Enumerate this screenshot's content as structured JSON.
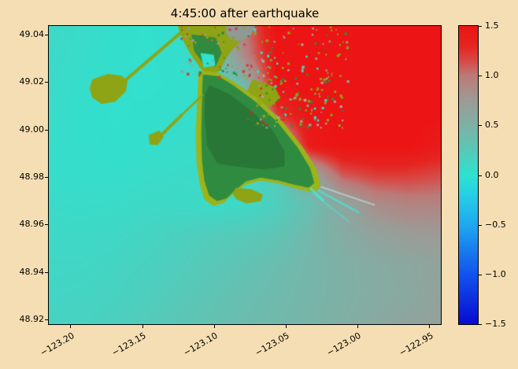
{
  "page": {
    "background_color": "#f5deb3"
  },
  "chart_data": {
    "type": "heatmap",
    "title": "4:45:00 after earthquake",
    "subtitle": "",
    "xlabel": "",
    "ylabel": "",
    "xlim": [
      -123.215,
      -122.942
    ],
    "ylim": [
      48.918,
      49.0436
    ],
    "grid": false,
    "xticks": {
      "values": [
        -123.2,
        -123.15,
        -123.1,
        -123.05,
        -123.0,
        -122.95
      ],
      "labels": [
        "−123.20",
        "−123.15",
        "−123.10",
        "−123.05",
        "−123.00",
        "−122.95"
      ]
    },
    "yticks": {
      "values": [
        49.04,
        49.02,
        49.0,
        48.98,
        48.96,
        48.94,
        48.92
      ],
      "labels": [
        "49.04",
        "49.02",
        "49.00",
        "48.98",
        "48.96",
        "48.94",
        "48.92"
      ]
    },
    "colorbar": {
      "min": -1.5,
      "max": 1.5,
      "position": "right",
      "ticks": {
        "values": [
          1.5,
          1.0,
          0.5,
          0.0,
          -0.5,
          -1.0,
          -1.5
        ],
        "labels": [
          "1.5",
          "1.0",
          "0.5",
          "0.0",
          "−0.5",
          "−1.0",
          "−1.5"
        ]
      },
      "stops": [
        {
          "v": -1.5,
          "c": "#0a0ad2"
        },
        {
          "v": -1.0,
          "c": "#1253ee"
        },
        {
          "v": -0.5,
          "c": "#1fa8f0"
        },
        {
          "v": -0.2,
          "c": "#27cfe6"
        },
        {
          "v": 0.0,
          "c": "#2ee2cf"
        },
        {
          "v": 0.3,
          "c": "#5fc4b4"
        },
        {
          "v": 0.5,
          "c": "#7fb0a5"
        },
        {
          "v": 0.75,
          "c": "#9d9a96"
        },
        {
          "v": 1.0,
          "c": "#bb7a78"
        },
        {
          "v": 1.15,
          "c": "#d84a46"
        },
        {
          "v": 1.3,
          "c": "#e62420"
        },
        {
          "v": 1.5,
          "c": "#ec1414"
        }
      ]
    },
    "field": {
      "description": "sea surface displacement (m), coarse grid, row 0 = north/top, saturates at ±1.5",
      "cols": 13,
      "rows": 11,
      "values": [
        [
          0.1,
          0.07,
          0.04,
          0.02,
          0.05,
          0.3,
          1.0,
          1.5,
          1.5,
          1.5,
          1.5,
          1.5,
          1.5
        ],
        [
          0.09,
          0.06,
          0.03,
          0.02,
          0.04,
          0.2,
          0.9,
          1.5,
          1.5,
          1.5,
          1.5,
          1.5,
          1.5
        ],
        [
          0.08,
          0.05,
          0.03,
          0.02,
          0.03,
          0.05,
          0.4,
          1.5,
          1.5,
          1.5,
          1.5,
          1.5,
          1.5
        ],
        [
          0.07,
          0.04,
          0.02,
          0.03,
          0.04,
          0.06,
          0.3,
          1.2,
          1.5,
          1.5,
          1.5,
          1.5,
          1.5
        ],
        [
          0.06,
          0.04,
          0.03,
          0.04,
          0.06,
          0.08,
          0.15,
          0.5,
          1.4,
          1.5,
          1.5,
          1.5,
          1.4
        ],
        [
          0.06,
          0.05,
          0.05,
          0.07,
          0.08,
          0.08,
          0.1,
          0.25,
          0.6,
          1.1,
          1.2,
          1.2,
          1.15
        ],
        [
          0.08,
          0.07,
          0.08,
          0.1,
          0.1,
          0.08,
          0.1,
          0.2,
          0.35,
          0.6,
          0.85,
          0.92,
          0.92
        ],
        [
          0.1,
          0.1,
          0.11,
          0.14,
          0.18,
          0.22,
          0.25,
          0.3,
          0.42,
          0.55,
          0.65,
          0.72,
          0.75
        ],
        [
          0.12,
          0.12,
          0.14,
          0.17,
          0.21,
          0.26,
          0.31,
          0.37,
          0.44,
          0.5,
          0.56,
          0.6,
          0.65
        ],
        [
          0.13,
          0.14,
          0.16,
          0.2,
          0.25,
          0.3,
          0.35,
          0.4,
          0.45,
          0.5,
          0.55,
          0.58,
          0.66
        ],
        [
          0.15,
          0.16,
          0.19,
          0.23,
          0.28,
          0.33,
          0.38,
          0.42,
          0.46,
          0.52,
          0.58,
          0.63,
          0.68
        ]
      ]
    },
    "land_colors": {
      "olive": "#8fa414",
      "fringe": "#9db31a",
      "green": "#2f8b3f",
      "dark_green": "#297737",
      "urban_gray": "#8f9a96",
      "water_cyan": "#2ee2cf"
    },
    "land_shapes": [
      {
        "name": "delta-upland",
        "color": "#8fa414",
        "points": [
          [
            0.33,
            0.0
          ],
          [
            0.525,
            0.0
          ],
          [
            0.505,
            0.035
          ],
          [
            0.478,
            0.065
          ],
          [
            0.46,
            0.09
          ],
          [
            0.448,
            0.118
          ],
          [
            0.436,
            0.148
          ],
          [
            0.418,
            0.163
          ],
          [
            0.4,
            0.16
          ],
          [
            0.386,
            0.138
          ],
          [
            0.368,
            0.105
          ],
          [
            0.35,
            0.065
          ],
          [
            0.337,
            0.03
          ]
        ]
      },
      {
        "name": "delta-urban-gray",
        "color": "#8f9a96",
        "points": [
          [
            0.455,
            0.0
          ],
          [
            0.525,
            0.0
          ],
          [
            0.515,
            0.03
          ],
          [
            0.49,
            0.05
          ],
          [
            0.465,
            0.045
          ],
          [
            0.452,
            0.02
          ]
        ]
      },
      {
        "name": "delta-green-patch",
        "color": "#2f8b3f",
        "points": [
          [
            0.365,
            0.03
          ],
          [
            0.425,
            0.04
          ],
          [
            0.44,
            0.09
          ],
          [
            0.425,
            0.135
          ],
          [
            0.395,
            0.125
          ],
          [
            0.372,
            0.085
          ]
        ]
      },
      {
        "name": "harbor-notch",
        "color": "#2ee2cf",
        "points": [
          [
            0.388,
            0.092
          ],
          [
            0.42,
            0.098
          ],
          [
            0.424,
            0.132
          ],
          [
            0.396,
            0.138
          ]
        ]
      },
      {
        "name": "ferry-terminal",
        "color": "#8fa414",
        "points": [
          [
            0.112,
            0.18
          ],
          [
            0.15,
            0.162
          ],
          [
            0.185,
            0.168
          ],
          [
            0.2,
            0.185
          ],
          [
            0.195,
            0.22
          ],
          [
            0.17,
            0.252
          ],
          [
            0.135,
            0.26
          ],
          [
            0.112,
            0.24
          ],
          [
            0.105,
            0.21
          ]
        ]
      },
      {
        "name": "coal-port",
        "color": "#8fa414",
        "points": [
          [
            0.256,
            0.366
          ],
          [
            0.282,
            0.352
          ],
          [
            0.292,
            0.372
          ],
          [
            0.278,
            0.398
          ],
          [
            0.258,
            0.396
          ]
        ]
      },
      {
        "name": "marsh-east",
        "color": "#8fa414",
        "points": [
          [
            0.52,
            0.18
          ],
          [
            0.575,
            0.205
          ],
          [
            0.59,
            0.24
          ],
          [
            0.565,
            0.27
          ],
          [
            0.53,
            0.26
          ],
          [
            0.505,
            0.225
          ]
        ]
      },
      {
        "name": "peninsula-fringe",
        "color": "#9db31a",
        "points": [
          [
            0.383,
            0.15
          ],
          [
            0.432,
            0.158
          ],
          [
            0.472,
            0.188
          ],
          [
            0.532,
            0.243
          ],
          [
            0.592,
            0.315
          ],
          [
            0.646,
            0.405
          ],
          [
            0.682,
            0.478
          ],
          [
            0.692,
            0.535
          ],
          [
            0.68,
            0.557
          ],
          [
            0.638,
            0.547
          ],
          [
            0.588,
            0.527
          ],
          [
            0.54,
            0.517
          ],
          [
            0.5,
            0.532
          ],
          [
            0.47,
            0.562
          ],
          [
            0.446,
            0.592
          ],
          [
            0.42,
            0.602
          ],
          [
            0.398,
            0.582
          ],
          [
            0.386,
            0.53
          ],
          [
            0.378,
            0.46
          ],
          [
            0.376,
            0.36
          ],
          [
            0.38,
            0.24
          ]
        ]
      },
      {
        "name": "peninsula",
        "color": "#2f8b3f",
        "points": [
          [
            0.394,
            0.164
          ],
          [
            0.433,
            0.17
          ],
          [
            0.468,
            0.198
          ],
          [
            0.524,
            0.252
          ],
          [
            0.582,
            0.322
          ],
          [
            0.634,
            0.408
          ],
          [
            0.666,
            0.478
          ],
          [
            0.676,
            0.527
          ],
          [
            0.663,
            0.541
          ],
          [
            0.626,
            0.531
          ],
          [
            0.586,
            0.517
          ],
          [
            0.54,
            0.507
          ],
          [
            0.503,
            0.52
          ],
          [
            0.476,
            0.548
          ],
          [
            0.453,
            0.577
          ],
          [
            0.429,
            0.586
          ],
          [
            0.41,
            0.568
          ],
          [
            0.398,
            0.52
          ],
          [
            0.392,
            0.455
          ],
          [
            0.39,
            0.36
          ],
          [
            0.392,
            0.245
          ]
        ]
      },
      {
        "name": "peninsula-core",
        "color": "#297737",
        "points": [
          [
            0.41,
            0.2
          ],
          [
            0.46,
            0.23
          ],
          [
            0.52,
            0.29
          ],
          [
            0.57,
            0.35
          ],
          [
            0.6,
            0.42
          ],
          [
            0.6,
            0.47
          ],
          [
            0.55,
            0.48
          ],
          [
            0.48,
            0.47
          ],
          [
            0.43,
            0.46
          ],
          [
            0.405,
            0.4
          ],
          [
            0.398,
            0.3
          ],
          [
            0.4,
            0.23
          ]
        ]
      },
      {
        "name": "lily-spit",
        "color": "#8fa414",
        "points": [
          [
            0.476,
            0.545
          ],
          [
            0.515,
            0.548
          ],
          [
            0.545,
            0.566
          ],
          [
            0.54,
            0.586
          ],
          [
            0.505,
            0.594
          ],
          [
            0.479,
            0.58
          ],
          [
            0.47,
            0.562
          ]
        ]
      }
    ],
    "jetty_lines": [
      {
        "name": "ferry-jetty",
        "color": "#8fa414",
        "width": 4,
        "from": [
          0.197,
          0.18
        ],
        "to": [
          0.346,
          0.012
        ]
      },
      {
        "name": "coal-jetty",
        "color": "#8fa414",
        "width": 4,
        "from": [
          0.27,
          0.388
        ],
        "to": [
          0.338,
          0.3
        ]
      },
      {
        "name": "coal-jetty-ext",
        "color": "#8fa414",
        "width": 2.5,
        "from": [
          0.338,
          0.3
        ],
        "to": [
          0.392,
          0.232
        ]
      }
    ],
    "wake_streaks": [
      {
        "color": "#49e8da",
        "alpha": 0.7,
        "width": 2.5,
        "from": [
          0.688,
          0.552
        ],
        "to": [
          0.79,
          0.625
        ]
      },
      {
        "color": "#49e8da",
        "alpha": 0.5,
        "width": 2.0,
        "from": [
          0.672,
          0.56
        ],
        "to": [
          0.765,
          0.655
        ]
      },
      {
        "color": "#bff0ea",
        "alpha": 0.6,
        "width": 2.0,
        "from": [
          0.695,
          0.54
        ],
        "to": [
          0.83,
          0.6
        ]
      },
      {
        "color": "#49e8da",
        "alpha": 0.8,
        "width": 3.0,
        "from": [
          0.668,
          0.545
        ],
        "to": [
          0.7,
          0.585
        ]
      }
    ],
    "speckle_regions": [
      {
        "name": "urban-flooded-mix",
        "rect": [
          0.52,
          0.0,
          0.76,
          0.34
        ],
        "count": 170,
        "seed": 7,
        "min_size": 1.5,
        "max_size": 3.5,
        "colors": [
          "#8fa414",
          "#9d9a96",
          "#8fa414",
          "#2f8b3f",
          "#9d9a96",
          "#8fa414",
          "#2ee2cf",
          "#b0a8a4"
        ]
      },
      {
        "name": "delta-urban-mix",
        "rect": [
          0.33,
          0.0,
          0.53,
          0.17
        ],
        "count": 70,
        "seed": 13,
        "min_size": 1.5,
        "max_size": 3.5,
        "colors": [
          "#9d9a96",
          "#c8403c",
          "#8fa414",
          "#2f8b3f",
          "#c8403c"
        ]
      },
      {
        "name": "marsh-mix",
        "rect": [
          0.5,
          0.17,
          0.64,
          0.34
        ],
        "count": 50,
        "seed": 21,
        "min_size": 1.5,
        "max_size": 3.0,
        "colors": [
          "#8fa414",
          "#2f8b3f",
          "#e62420"
        ]
      }
    ]
  }
}
